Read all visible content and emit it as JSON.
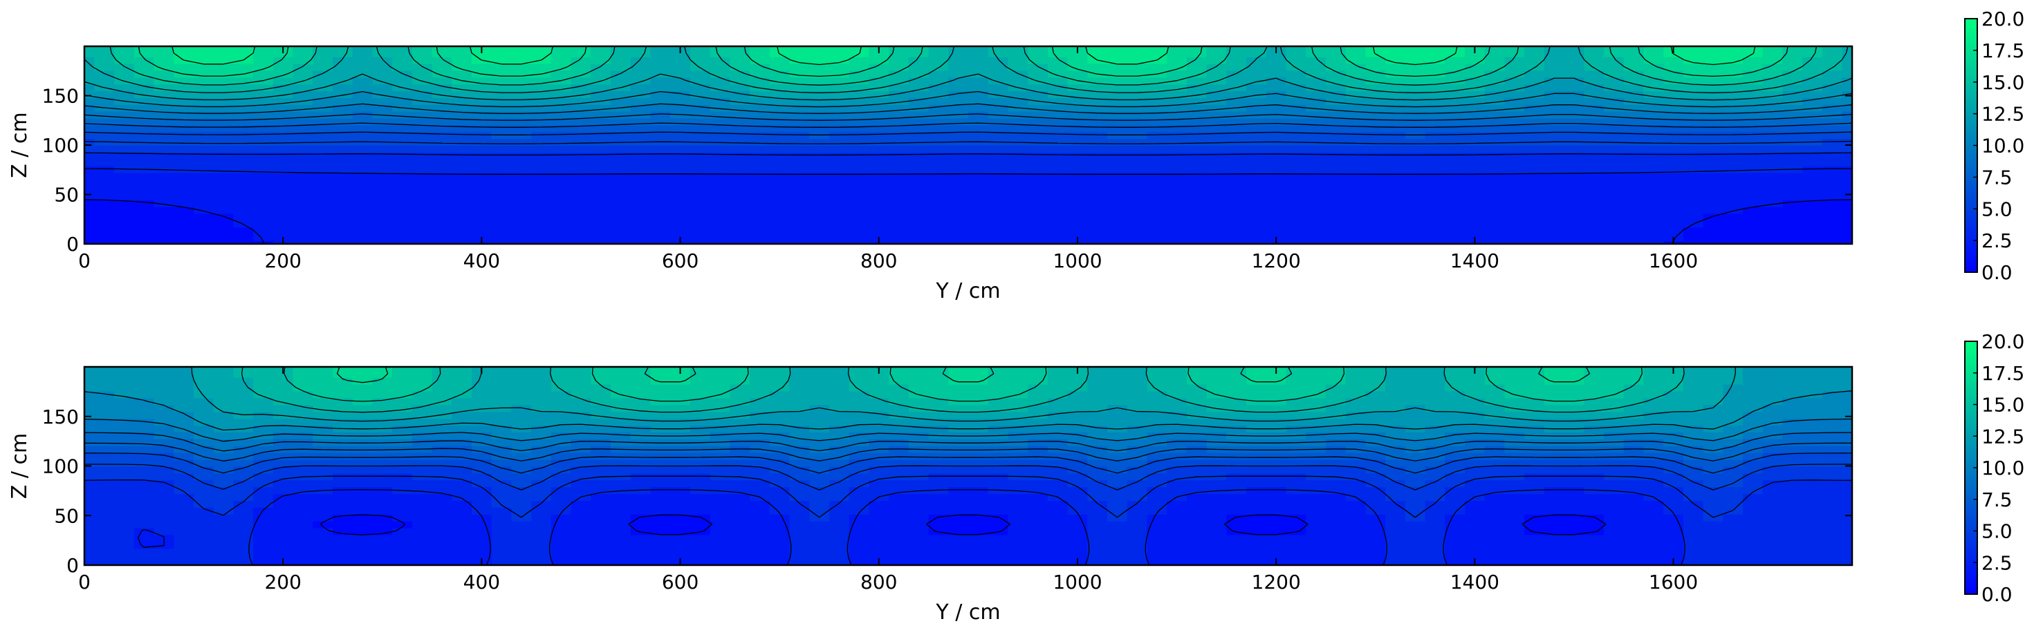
{
  "chart_data": [
    {
      "type": "heatmap",
      "subtype": "filled-contour",
      "colormap": "winter",
      "colormap_colors": [
        "#0000ff",
        "#00ff80"
      ],
      "xlabel": "Y / cm",
      "ylabel": "Z / cm",
      "xlim": [
        0,
        1780
      ],
      "ylim": [
        0,
        200
      ],
      "xticks": [
        0,
        200,
        400,
        600,
        800,
        1000,
        1200,
        1400,
        1600
      ],
      "yticks": [
        0,
        50,
        100,
        150
      ],
      "grid": false,
      "colorbar": {
        "range": [
          0,
          20
        ],
        "ticks": [
          "0.0",
          "2.5",
          "5.0",
          "7.5",
          "10.0",
          "12.5",
          "15.0",
          "17.5",
          "20.0"
        ],
        "placement": "right"
      },
      "contour_levels": [
        1.25,
        2.5,
        3.75,
        5,
        6.25,
        7.5,
        8.75,
        10,
        11.25,
        12.5,
        13.75,
        15,
        16.25,
        17.5,
        18.75
      ],
      "field": {
        "pattern": "top-hotspots",
        "hotspot_y": [
          130,
          430,
          740,
          1050,
          1340,
          1640
        ],
        "top_value": 19.0
      }
    },
    {
      "type": "heatmap",
      "subtype": "filled-contour",
      "colormap": "winter",
      "colormap_colors": [
        "#0000ff",
        "#00ff80"
      ],
      "xlabel": "Y / cm",
      "ylabel": "Z / cm",
      "xlim": [
        0,
        1780
      ],
      "ylim": [
        0,
        200
      ],
      "xticks": [
        0,
        200,
        400,
        600,
        800,
        1000,
        1200,
        1400,
        1600
      ],
      "yticks": [
        0,
        50,
        100,
        150
      ],
      "grid": false,
      "colorbar": {
        "range": [
          0,
          20
        ],
        "ticks": [
          "0.0",
          "2.5",
          "5.0",
          "7.5",
          "10.0",
          "12.5",
          "15.0",
          "17.5",
          "20.0"
        ],
        "placement": "right"
      },
      "contour_levels": [
        1.25,
        2.5,
        3.75,
        5,
        6.25,
        7.5,
        8.75,
        10,
        11.25,
        12.5,
        13.75,
        15,
        16.25,
        17.5,
        18.75
      ],
      "field": {
        "pattern": "top-hotspots-with-bottom-lobes",
        "hotspot_y": [
          280,
          590,
          890,
          1190,
          1490
        ],
        "plume_y": [
          140,
          440,
          740,
          1040,
          1340,
          1640
        ],
        "top_value": 17.5
      }
    }
  ]
}
